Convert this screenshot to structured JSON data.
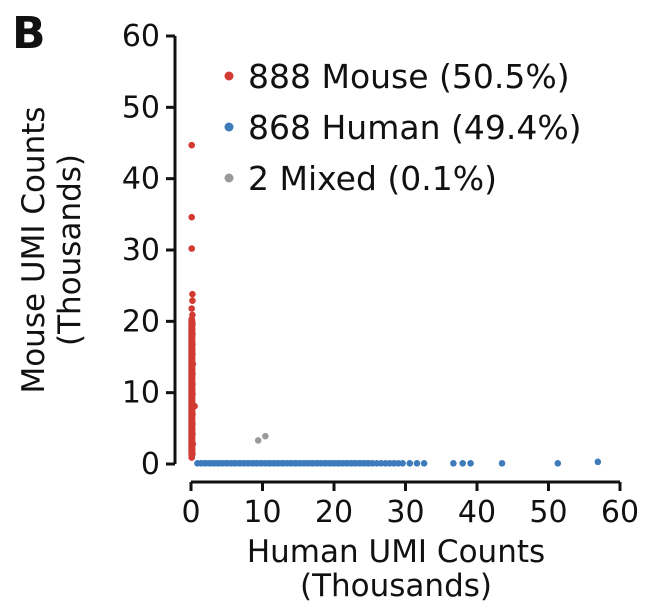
{
  "panel_label": "B",
  "chart_data": {
    "type": "scatter",
    "xlabel": [
      "Human UMI Counts",
      "(Thousands)"
    ],
    "ylabel": [
      "Mouse UMI Counts",
      "(Thousands)"
    ],
    "xlim": [
      0,
      60
    ],
    "ylim": [
      0,
      60
    ],
    "xticks": [
      "0",
      "10",
      "20",
      "30",
      "40",
      "50",
      "60"
    ],
    "yticks": [
      "0",
      "10",
      "20",
      "30",
      "40",
      "50",
      "60"
    ],
    "grid": false,
    "legend_position": "top-right",
    "series": [
      {
        "name": "888 Mouse (50.5%)",
        "color": "#d23b32",
        "points": [
          [
            0.1,
            44.7
          ],
          [
            0.1,
            34.6
          ],
          [
            0.1,
            30.2
          ],
          [
            0.2,
            23.8
          ],
          [
            0.2,
            22.9
          ],
          [
            0.1,
            21.8
          ],
          [
            0.2,
            20.9
          ],
          [
            0.1,
            20.3
          ],
          [
            0.2,
            19.6
          ],
          [
            0.15,
            18.9
          ],
          [
            0.2,
            18.2
          ],
          [
            0.1,
            17.5
          ],
          [
            0.2,
            16.8
          ],
          [
            0.15,
            16.1
          ],
          [
            0.2,
            15.4
          ],
          [
            0.1,
            14.7
          ],
          [
            0.25,
            14.0
          ],
          [
            0.15,
            13.3
          ],
          [
            0.2,
            12.6
          ],
          [
            0.1,
            11.9
          ],
          [
            0.2,
            11.2
          ],
          [
            0.15,
            10.5
          ],
          [
            0.2,
            9.8
          ],
          [
            0.1,
            9.1
          ],
          [
            0.2,
            8.4
          ],
          [
            0.5,
            8.1
          ],
          [
            0.15,
            7.7
          ],
          [
            0.2,
            7.0
          ],
          [
            0.1,
            6.3
          ],
          [
            0.2,
            5.6
          ],
          [
            0.15,
            4.9
          ],
          [
            0.2,
            4.2
          ],
          [
            0.1,
            3.5
          ],
          [
            0.25,
            2.8
          ],
          [
            0.15,
            2.1
          ],
          [
            0.2,
            1.4
          ],
          [
            0.1,
            0.9
          ]
        ]
      },
      {
        "name": "868 Human (49.4%)",
        "color": "#3d7bbb",
        "points": [
          [
            0.9,
            0.1
          ],
          [
            1.4,
            0.1
          ],
          [
            2.0,
            0.1
          ],
          [
            2.6,
            0.1
          ],
          [
            3.2,
            0.1
          ],
          [
            3.8,
            0.1
          ],
          [
            4.4,
            0.1
          ],
          [
            5.0,
            0.1
          ],
          [
            5.6,
            0.1
          ],
          [
            6.2,
            0.1
          ],
          [
            6.8,
            0.1
          ],
          [
            7.4,
            0.1
          ],
          [
            8.0,
            0.1
          ],
          [
            8.6,
            0.1
          ],
          [
            9.2,
            0.1
          ],
          [
            9.8,
            0.1
          ],
          [
            10.4,
            0.1
          ],
          [
            11.0,
            0.1
          ],
          [
            11.6,
            0.1
          ],
          [
            12.2,
            0.1
          ],
          [
            12.8,
            0.1
          ],
          [
            13.4,
            0.1
          ],
          [
            14.0,
            0.1
          ],
          [
            14.6,
            0.1
          ],
          [
            15.2,
            0.1
          ],
          [
            15.8,
            0.1
          ],
          [
            16.4,
            0.1
          ],
          [
            17.0,
            0.1
          ],
          [
            17.6,
            0.1
          ],
          [
            18.2,
            0.1
          ],
          [
            18.8,
            0.1
          ],
          [
            19.4,
            0.1
          ],
          [
            20.0,
            0.1
          ],
          [
            20.6,
            0.1
          ],
          [
            21.2,
            0.1
          ],
          [
            21.8,
            0.1
          ],
          [
            22.4,
            0.1
          ],
          [
            23.0,
            0.1
          ],
          [
            23.6,
            0.1
          ],
          [
            24.2,
            0.1
          ],
          [
            24.8,
            0.1
          ],
          [
            25.4,
            0.1
          ],
          [
            26.0,
            0.1
          ],
          [
            26.6,
            0.1
          ],
          [
            27.2,
            0.1
          ],
          [
            27.8,
            0.1
          ],
          [
            28.4,
            0.1
          ],
          [
            29.0,
            0.1
          ],
          [
            29.6,
            0.1
          ],
          [
            30.6,
            0.1
          ],
          [
            31.6,
            0.1
          ],
          [
            32.6,
            0.1
          ],
          [
            36.7,
            0.1
          ],
          [
            38.0,
            0.1
          ],
          [
            39.1,
            0.1
          ],
          [
            43.5,
            0.1
          ],
          [
            51.3,
            0.1
          ],
          [
            56.9,
            0.3
          ]
        ]
      },
      {
        "name": "2 Mixed (0.1%)",
        "color": "#9a9a9a",
        "points": [
          [
            9.4,
            3.3
          ],
          [
            10.4,
            3.9
          ]
        ]
      }
    ]
  }
}
